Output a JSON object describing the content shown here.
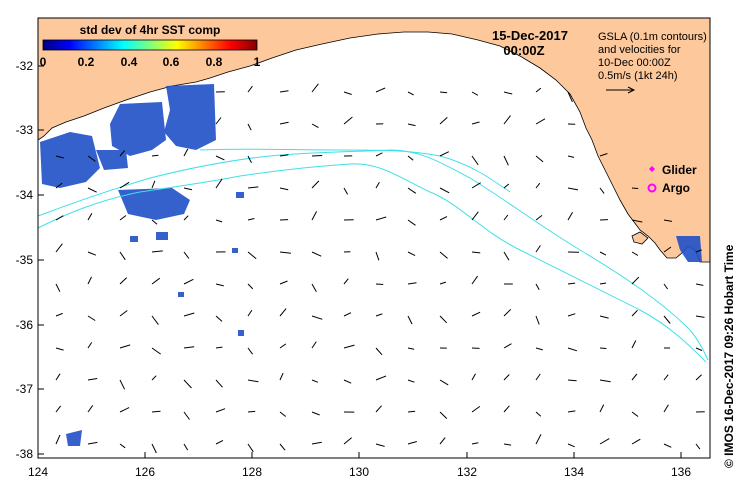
{
  "title_date": "15-Dec-2017",
  "title_time": "00:00Z",
  "colorbar": {
    "title": "std dev of 4hr SST comp",
    "ticks": [
      "0",
      "0.2",
      "0.4",
      "0.6",
      "0.8",
      "1"
    ],
    "colors": [
      "#00007f",
      "#0000ff",
      "#0080ff",
      "#00ffff",
      "#7fff7f",
      "#ffff00",
      "#ff8000",
      "#ff0000",
      "#7f0000"
    ]
  },
  "gsla_note": {
    "line1": "GSLA (0.1m contours)",
    "line2": "and velocities for",
    "line3": "10-Dec 00:00Z",
    "line4": "0.5m/s (1kt 24h)"
  },
  "legend": {
    "glider": "Glider",
    "argo": "Argo",
    "glider_color": "#ff00ff",
    "argo_color": "#ff00ff"
  },
  "axes": {
    "x_ticks": [
      "124",
      "126",
      "128",
      "130",
      "132",
      "134",
      "136"
    ],
    "y_ticks": [
      "-32",
      "-33",
      "-34",
      "-35",
      "-36",
      "-37",
      "-38"
    ],
    "lon_range": [
      124,
      136.5
    ],
    "lat_range": [
      -38.1,
      -31.3
    ]
  },
  "colors": {
    "land": "#fcc89c",
    "contour": "#40e0e8",
    "sst": "#2050c8"
  },
  "copyright": "© IMOS 16-Dec-2017 09:26 Hobart Time"
}
